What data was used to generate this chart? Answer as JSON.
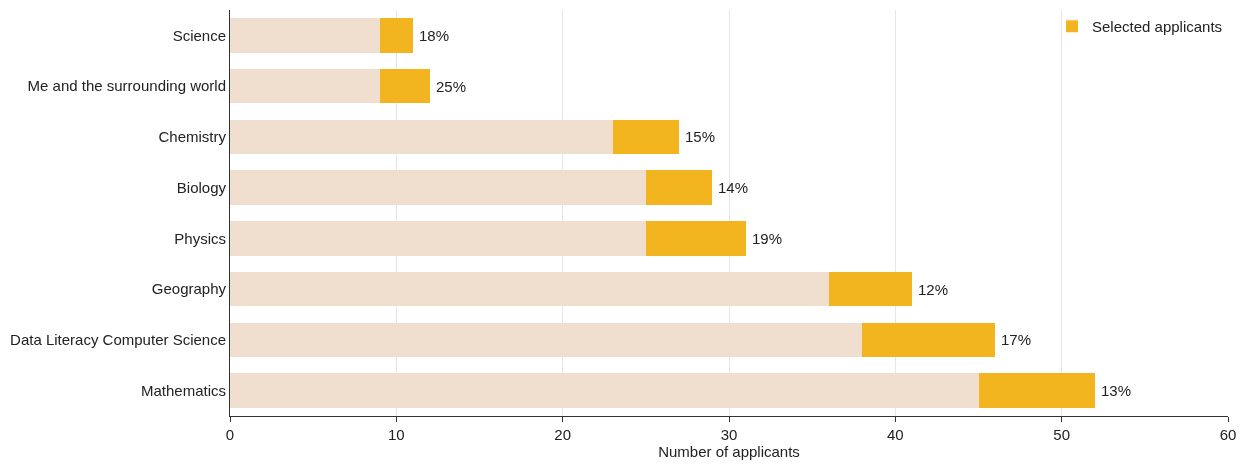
{
  "chart_data": {
    "type": "bar",
    "orientation": "horizontal",
    "stacked": true,
    "xlabel": "Number of applicants",
    "categories": [
      "Science",
      "Me and the surrounding world",
      "Chemistry",
      "Biology",
      "Physics",
      "Geography",
      "Data Literacy Computer Science",
      "Mathematics"
    ],
    "series": [
      {
        "color": "#f0dfcf",
        "values": [
          9,
          9,
          23,
          25,
          25,
          36,
          38,
          45
        ]
      },
      {
        "name": "Selected applicants",
        "color": "#f2b51f",
        "values": [
          2,
          3,
          4,
          4,
          6,
          5,
          8,
          7
        ]
      }
    ],
    "annotations": [
      {
        "text": "18%",
        "x": 11,
        "y": "Science"
      },
      {
        "text": "25%",
        "x": 12,
        "y": "Me and the surrounding world"
      },
      {
        "text": "15%",
        "x": 27,
        "y": "Chemistry"
      },
      {
        "text": "14%",
        "x": 29,
        "y": "Biology"
      },
      {
        "text": "19%",
        "x": 31,
        "y": "Physics"
      },
      {
        "text": "12%",
        "x": 41,
        "y": "Geography"
      },
      {
        "text": "17%",
        "x": 46,
        "y": "Data Literacy Computer Science"
      },
      {
        "text": "13%",
        "x": 52,
        "y": "Mathematics"
      }
    ],
    "xlim": [
      0,
      60
    ],
    "xticks": [
      0,
      10,
      20,
      30,
      40,
      50,
      60
    ],
    "grid": "x",
    "legend": "top right"
  }
}
